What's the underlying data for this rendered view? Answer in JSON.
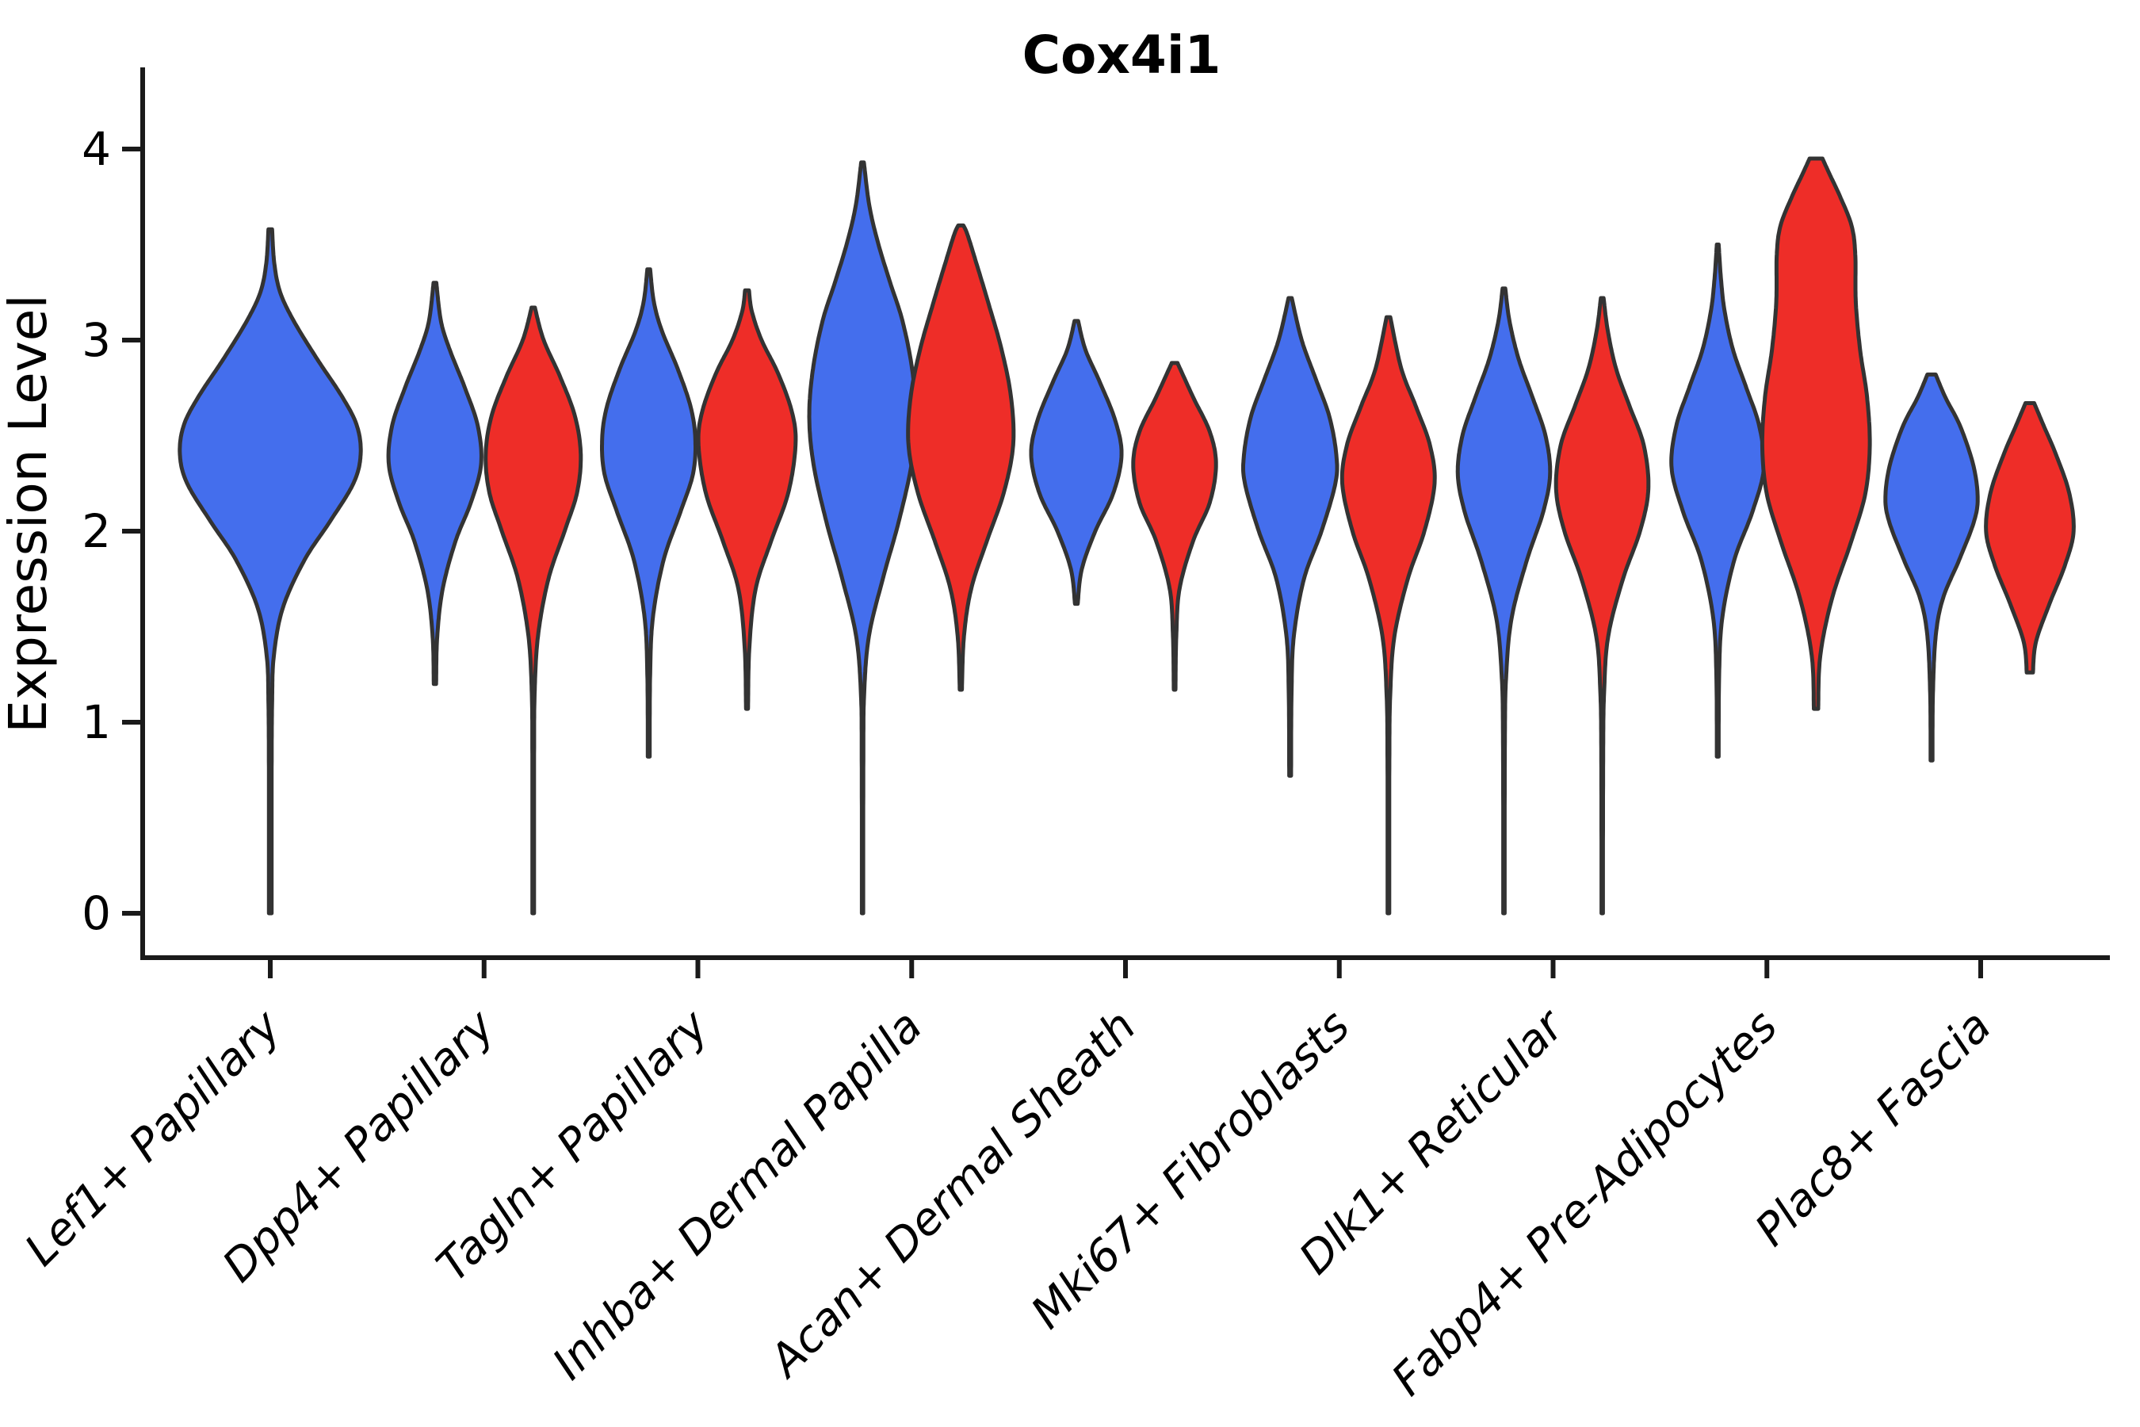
{
  "title": "Cox4i1",
  "y_axis": {
    "label": "Expression Level",
    "ticks": [
      0,
      1,
      2,
      3,
      4
    ],
    "lim": [
      0,
      4.3
    ]
  },
  "x_axis": {
    "categories": [
      "Lef1+ Papillary",
      "Dpp4+ Papillary",
      "Tagln+ Papillary",
      "Inhba+ Dermal Papilla",
      "Acan+ Dermal Sheath",
      "Mki67+ Fibroblasts",
      "Dlk1+ Reticular",
      "Fabp4+ Pre-Adipocytes",
      "Plac8+ Fascia"
    ]
  },
  "colors": {
    "split1": "#446eed",
    "split2": "#ee2d28",
    "outline": "#333333",
    "axis": "#1a1a1a",
    "text": "#000000"
  },
  "chart_data": {
    "type": "violin",
    "split": true,
    "title": "Cox4i1",
    "xlabel": "",
    "ylabel": "Expression Level",
    "ylim": [
      0,
      4.3
    ],
    "grid": false,
    "legend": "none",
    "categories": [
      "Lef1+ Papillary",
      "Dpp4+ Papillary",
      "Tagln+ Papillary",
      "Inhba+ Dermal Papilla",
      "Acan+ Dermal Sheath",
      "Mki67+ Fibroblasts",
      "Dlk1+ Reticular",
      "Fabp4+ Pre-Adipocytes",
      "Plac8+ Fascia"
    ],
    "violins": [
      {
        "category": "Lef1+ Papillary",
        "split": 1,
        "offset": 0,
        "rel_width": 1.9,
        "min": 0.0,
        "max": 3.58,
        "peak": 2.4,
        "profile": [
          [
            0,
            0.015
          ],
          [
            0.7,
            0.015
          ],
          [
            1.1,
            0.02
          ],
          [
            1.35,
            0.04
          ],
          [
            1.6,
            0.14
          ],
          [
            1.85,
            0.38
          ],
          [
            2.05,
            0.66
          ],
          [
            2.25,
            0.92
          ],
          [
            2.4,
            1.0
          ],
          [
            2.55,
            0.96
          ],
          [
            2.7,
            0.8
          ],
          [
            2.9,
            0.52
          ],
          [
            3.1,
            0.26
          ],
          [
            3.25,
            0.11
          ],
          [
            3.4,
            0.045
          ],
          [
            3.58,
            0.02
          ]
        ]
      },
      {
        "category": "Dpp4+ Papillary",
        "split": 1,
        "offset": -1,
        "rel_width": 0.97,
        "min": 1.2,
        "max": 3.3,
        "peak": 2.35,
        "profile": [
          [
            1.2,
            0.025
          ],
          [
            1.45,
            0.05
          ],
          [
            1.7,
            0.17
          ],
          [
            1.95,
            0.45
          ],
          [
            2.15,
            0.78
          ],
          [
            2.35,
            1.0
          ],
          [
            2.55,
            0.93
          ],
          [
            2.75,
            0.65
          ],
          [
            2.95,
            0.32
          ],
          [
            3.1,
            0.13
          ],
          [
            3.3,
            0.03
          ]
        ]
      },
      {
        "category": "Dpp4+ Papillary",
        "split": 2,
        "offset": 1,
        "rel_width": 1.0,
        "min": 0.0,
        "max": 3.17,
        "peak": 2.4,
        "profile": [
          [
            0,
            0.018
          ],
          [
            0.8,
            0.018
          ],
          [
            1.15,
            0.03
          ],
          [
            1.45,
            0.1
          ],
          [
            1.75,
            0.32
          ],
          [
            2.0,
            0.66
          ],
          [
            2.2,
            0.92
          ],
          [
            2.4,
            1.0
          ],
          [
            2.6,
            0.88
          ],
          [
            2.8,
            0.58
          ],
          [
            3.0,
            0.22
          ],
          [
            3.17,
            0.035
          ]
        ]
      },
      {
        "category": "Tagln+ Papillary",
        "split": 1,
        "offset": -1,
        "rel_width": 0.98,
        "min": 0.82,
        "max": 3.37,
        "peak": 2.48,
        "profile": [
          [
            0.82,
            0.02
          ],
          [
            1.25,
            0.03
          ],
          [
            1.55,
            0.09
          ],
          [
            1.85,
            0.32
          ],
          [
            2.1,
            0.68
          ],
          [
            2.3,
            0.95
          ],
          [
            2.48,
            1.0
          ],
          [
            2.65,
            0.9
          ],
          [
            2.85,
            0.62
          ],
          [
            3.05,
            0.28
          ],
          [
            3.2,
            0.11
          ],
          [
            3.37,
            0.03
          ]
        ]
      },
      {
        "category": "Tagln+ Papillary",
        "split": 2,
        "offset": 1,
        "rel_width": 1.02,
        "min": 1.07,
        "max": 3.26,
        "peak": 2.45,
        "profile": [
          [
            1.07,
            0.02
          ],
          [
            1.4,
            0.05
          ],
          [
            1.7,
            0.18
          ],
          [
            1.95,
            0.5
          ],
          [
            2.2,
            0.85
          ],
          [
            2.45,
            1.0
          ],
          [
            2.62,
            0.93
          ],
          [
            2.82,
            0.65
          ],
          [
            3.0,
            0.3
          ],
          [
            3.15,
            0.1
          ],
          [
            3.26,
            0.04
          ]
        ]
      },
      {
        "category": "Inhba+ Dermal Papilla",
        "split": 1,
        "offset": -1,
        "rel_width": 1.12,
        "min": 0.0,
        "max": 3.93,
        "peak": 2.6,
        "profile": [
          [
            0,
            0.013
          ],
          [
            0.8,
            0.015
          ],
          [
            1.15,
            0.03
          ],
          [
            1.45,
            0.12
          ],
          [
            1.75,
            0.38
          ],
          [
            2.05,
            0.68
          ],
          [
            2.35,
            0.92
          ],
          [
            2.6,
            1.0
          ],
          [
            2.85,
            0.93
          ],
          [
            3.1,
            0.75
          ],
          [
            3.3,
            0.52
          ],
          [
            3.5,
            0.3
          ],
          [
            3.7,
            0.13
          ],
          [
            3.93,
            0.025
          ]
        ]
      },
      {
        "category": "Inhba+ Dermal Papilla",
        "split": 2,
        "offset": 1,
        "rel_width": 1.1,
        "min": 1.17,
        "max": 3.6,
        "peak": 2.45,
        "profile": [
          [
            1.17,
            0.02
          ],
          [
            1.45,
            0.06
          ],
          [
            1.7,
            0.2
          ],
          [
            1.95,
            0.5
          ],
          [
            2.2,
            0.82
          ],
          [
            2.45,
            1.0
          ],
          [
            2.7,
            0.96
          ],
          [
            2.95,
            0.78
          ],
          [
            3.2,
            0.52
          ],
          [
            3.4,
            0.3
          ],
          [
            3.55,
            0.13
          ],
          [
            3.6,
            0.05
          ]
        ]
      },
      {
        "category": "Acan+ Dermal Sheath",
        "split": 1,
        "offset": -1,
        "rel_width": 0.95,
        "min": 1.62,
        "max": 3.1,
        "peak": 2.4,
        "profile": [
          [
            1.62,
            0.03
          ],
          [
            1.8,
            0.12
          ],
          [
            2.0,
            0.42
          ],
          [
            2.2,
            0.82
          ],
          [
            2.4,
            1.0
          ],
          [
            2.58,
            0.86
          ],
          [
            2.78,
            0.52
          ],
          [
            2.95,
            0.2
          ],
          [
            3.1,
            0.04
          ]
        ]
      },
      {
        "category": "Acan+ Dermal Sheath",
        "split": 2,
        "offset": 1,
        "rel_width": 0.87,
        "min": 1.17,
        "max": 2.88,
        "peak": 2.35,
        "profile": [
          [
            1.17,
            0.02
          ],
          [
            1.45,
            0.04
          ],
          [
            1.7,
            0.12
          ],
          [
            1.95,
            0.45
          ],
          [
            2.15,
            0.85
          ],
          [
            2.35,
            1.0
          ],
          [
            2.52,
            0.85
          ],
          [
            2.7,
            0.45
          ],
          [
            2.88,
            0.07
          ]
        ]
      },
      {
        "category": "Mki67+ Fibroblasts",
        "split": 1,
        "offset": -1,
        "rel_width": 0.97,
        "min": 0.72,
        "max": 3.22,
        "peak": 2.35,
        "profile": [
          [
            0.72,
            0.02
          ],
          [
            1.15,
            0.03
          ],
          [
            1.45,
            0.08
          ],
          [
            1.75,
            0.3
          ],
          [
            2.0,
            0.68
          ],
          [
            2.25,
            0.98
          ],
          [
            2.4,
            1.0
          ],
          [
            2.6,
            0.85
          ],
          [
            2.8,
            0.55
          ],
          [
            3.0,
            0.25
          ],
          [
            3.22,
            0.035
          ]
        ]
      },
      {
        "category": "Mki67+ Fibroblasts",
        "split": 2,
        "offset": 1,
        "rel_width": 0.97,
        "min": 0.0,
        "max": 3.12,
        "peak": 2.25,
        "profile": [
          [
            0,
            0.018
          ],
          [
            0.8,
            0.02
          ],
          [
            1.15,
            0.04
          ],
          [
            1.45,
            0.13
          ],
          [
            1.75,
            0.42
          ],
          [
            2.0,
            0.78
          ],
          [
            2.25,
            1.0
          ],
          [
            2.45,
            0.9
          ],
          [
            2.65,
            0.6
          ],
          [
            2.85,
            0.28
          ],
          [
            3.12,
            0.04
          ]
        ]
      },
      {
        "category": "Dlk1+ Reticular",
        "split": 1,
        "offset": -1,
        "rel_width": 0.97,
        "min": 0.0,
        "max": 3.27,
        "peak": 2.3,
        "profile": [
          [
            0,
            0.015
          ],
          [
            0.9,
            0.02
          ],
          [
            1.25,
            0.05
          ],
          [
            1.55,
            0.17
          ],
          [
            1.85,
            0.5
          ],
          [
            2.1,
            0.85
          ],
          [
            2.3,
            1.0
          ],
          [
            2.5,
            0.9
          ],
          [
            2.7,
            0.62
          ],
          [
            2.9,
            0.32
          ],
          [
            3.1,
            0.12
          ],
          [
            3.27,
            0.03
          ]
        ]
      },
      {
        "category": "Dlk1+ Reticular",
        "split": 2,
        "offset": 1,
        "rel_width": 0.97,
        "min": 0.0,
        "max": 3.22,
        "peak": 2.22,
        "profile": [
          [
            0,
            0.015
          ],
          [
            0.8,
            0.02
          ],
          [
            1.15,
            0.04
          ],
          [
            1.45,
            0.13
          ],
          [
            1.75,
            0.45
          ],
          [
            2.0,
            0.82
          ],
          [
            2.22,
            1.0
          ],
          [
            2.45,
            0.9
          ],
          [
            2.65,
            0.6
          ],
          [
            2.85,
            0.3
          ],
          [
            3.05,
            0.12
          ],
          [
            3.22,
            0.03
          ]
        ]
      },
      {
        "category": "Fabp4+ Pre-Adipocytes",
        "split": 1,
        "offset": -1,
        "rel_width": 0.97,
        "min": 0.82,
        "max": 3.5,
        "peak": 2.33,
        "profile": [
          [
            0.82,
            0.02
          ],
          [
            1.25,
            0.03
          ],
          [
            1.55,
            0.1
          ],
          [
            1.85,
            0.36
          ],
          [
            2.1,
            0.75
          ],
          [
            2.33,
            1.0
          ],
          [
            2.55,
            0.9
          ],
          [
            2.75,
            0.62
          ],
          [
            2.95,
            0.33
          ],
          [
            3.15,
            0.15
          ],
          [
            3.32,
            0.07
          ],
          [
            3.5,
            0.02
          ]
        ]
      },
      {
        "category": "Fabp4+ Pre-Adipocytes",
        "split": 2,
        "offset": 1,
        "rel_width": 1.13,
        "min": 1.07,
        "max": 3.95,
        "peak": 2.45,
        "profile": [
          [
            1.07,
            0.04
          ],
          [
            1.35,
            0.08
          ],
          [
            1.65,
            0.3
          ],
          [
            1.95,
            0.66
          ],
          [
            2.2,
            0.92
          ],
          [
            2.45,
            1.0
          ],
          [
            2.7,
            0.95
          ],
          [
            2.95,
            0.82
          ],
          [
            3.2,
            0.74
          ],
          [
            3.45,
            0.73
          ],
          [
            3.6,
            0.66
          ],
          [
            3.75,
            0.45
          ],
          [
            3.87,
            0.25
          ],
          [
            3.95,
            0.12
          ]
        ]
      },
      {
        "category": "Plac8+ Fascia",
        "split": 1,
        "offset": -1,
        "rel_width": 0.97,
        "min": 0.8,
        "max": 2.82,
        "peak": 2.18,
        "profile": [
          [
            0.8,
            0.02
          ],
          [
            1.15,
            0.03
          ],
          [
            1.45,
            0.09
          ],
          [
            1.65,
            0.25
          ],
          [
            1.85,
            0.6
          ],
          [
            2.05,
            0.92
          ],
          [
            2.18,
            1.0
          ],
          [
            2.35,
            0.9
          ],
          [
            2.55,
            0.62
          ],
          [
            2.7,
            0.3
          ],
          [
            2.82,
            0.09
          ]
        ]
      },
      {
        "category": "Plac8+ Fascia",
        "split": 2,
        "offset": 1,
        "rel_width": 0.92,
        "min": 1.26,
        "max": 2.67,
        "peak": 2.0,
        "profile": [
          [
            1.26,
            0.07
          ],
          [
            1.42,
            0.14
          ],
          [
            1.62,
            0.45
          ],
          [
            1.82,
            0.8
          ],
          [
            2.0,
            1.0
          ],
          [
            2.2,
            0.9
          ],
          [
            2.4,
            0.6
          ],
          [
            2.55,
            0.32
          ],
          [
            2.67,
            0.1
          ]
        ]
      }
    ]
  }
}
